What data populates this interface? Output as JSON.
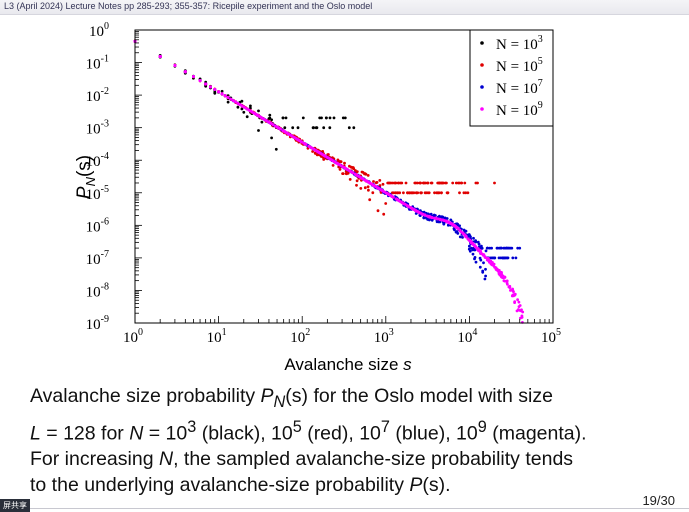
{
  "slide": {
    "header": "L3 (April 2024) Lecture Notes pp 285-293; 355-357: Ricepile experiment and the Oslo model",
    "page_number": "19/30",
    "badge": "屏共享",
    "caption": {
      "line1_a": "Avalanche size probability ",
      "line1_P": "P",
      "line1_Nsub": "N",
      "line1_s": "(s)",
      "line1_b": " for the Oslo model with size",
      "line2_L": "L",
      "line2_a": " = 128 for ",
      "line2_N": "N",
      "line2_b": " = 10",
      "line2_e1": "3",
      "line2_c": " (black), 10",
      "line2_e2": "5",
      "line2_d": " (red), 10",
      "line2_e3": "7",
      "line2_e": " (blue), 10",
      "line2_e4": "9",
      "line2_f": " (magenta).",
      "line3_a": "For increasing ",
      "line3_N": "N",
      "line3_b": ", the sampled avalanche-size probability tends",
      "line4_a": "to the underlying avalanche-size probability ",
      "line4_P": "P",
      "line4_s": "(s)."
    }
  },
  "chart_data": {
    "type": "scatter",
    "xscale": "log",
    "yscale": "log",
    "xlim": [
      1,
      100000
    ],
    "ylim": [
      1e-09,
      1
    ],
    "xlabel": "Avalanche size",
    "xlabel_var": "s",
    "ylabel_P": "P",
    "ylabel_sub": "N",
    "ylabel_arg": "(s)",
    "x_ticks": [
      {
        "value": 1,
        "base": "10",
        "exp": "0"
      },
      {
        "value": 10,
        "base": "10",
        "exp": "1"
      },
      {
        "value": 100,
        "base": "10",
        "exp": "2"
      },
      {
        "value": 1000,
        "base": "10",
        "exp": "3"
      },
      {
        "value": 10000,
        "base": "10",
        "exp": "4"
      },
      {
        "value": 100000,
        "base": "10",
        "exp": "5"
      }
    ],
    "y_ticks": [
      {
        "value": 1,
        "base": "10",
        "exp": "0"
      },
      {
        "value": 0.1,
        "base": "10",
        "exp": "-1"
      },
      {
        "value": 0.01,
        "base": "10",
        "exp": "-2"
      },
      {
        "value": 0.001,
        "base": "10",
        "exp": "-3"
      },
      {
        "value": 0.0001,
        "base": "10",
        "exp": "-4"
      },
      {
        "value": 1e-05,
        "base": "10",
        "exp": "-5"
      },
      {
        "value": 1e-06,
        "base": "10",
        "exp": "-6"
      },
      {
        "value": 1e-07,
        "base": "10",
        "exp": "-7"
      },
      {
        "value": 1e-08,
        "base": "10",
        "exp": "-8"
      },
      {
        "value": 1e-09,
        "base": "10",
        "exp": "-9"
      }
    ],
    "legend_position": "top-right",
    "series": [
      {
        "label_prefix": "N = 10",
        "exp": "3",
        "color": "#000000",
        "samples": 1000,
        "tail_cutoff": 40000
      },
      {
        "label_prefix": "N = 10",
        "exp": "5",
        "color": "#e00000",
        "samples": 100000,
        "tail_cutoff": 40000
      },
      {
        "label_prefix": "N = 10",
        "exp": "7",
        "color": "#0000d0",
        "samples": 10000000,
        "tail_cutoff": 40000
      },
      {
        "label_prefix": "N = 10",
        "exp": "9",
        "color": "#ff00ff",
        "samples": 1000000000,
        "tail_cutoff": 40000
      }
    ]
  }
}
